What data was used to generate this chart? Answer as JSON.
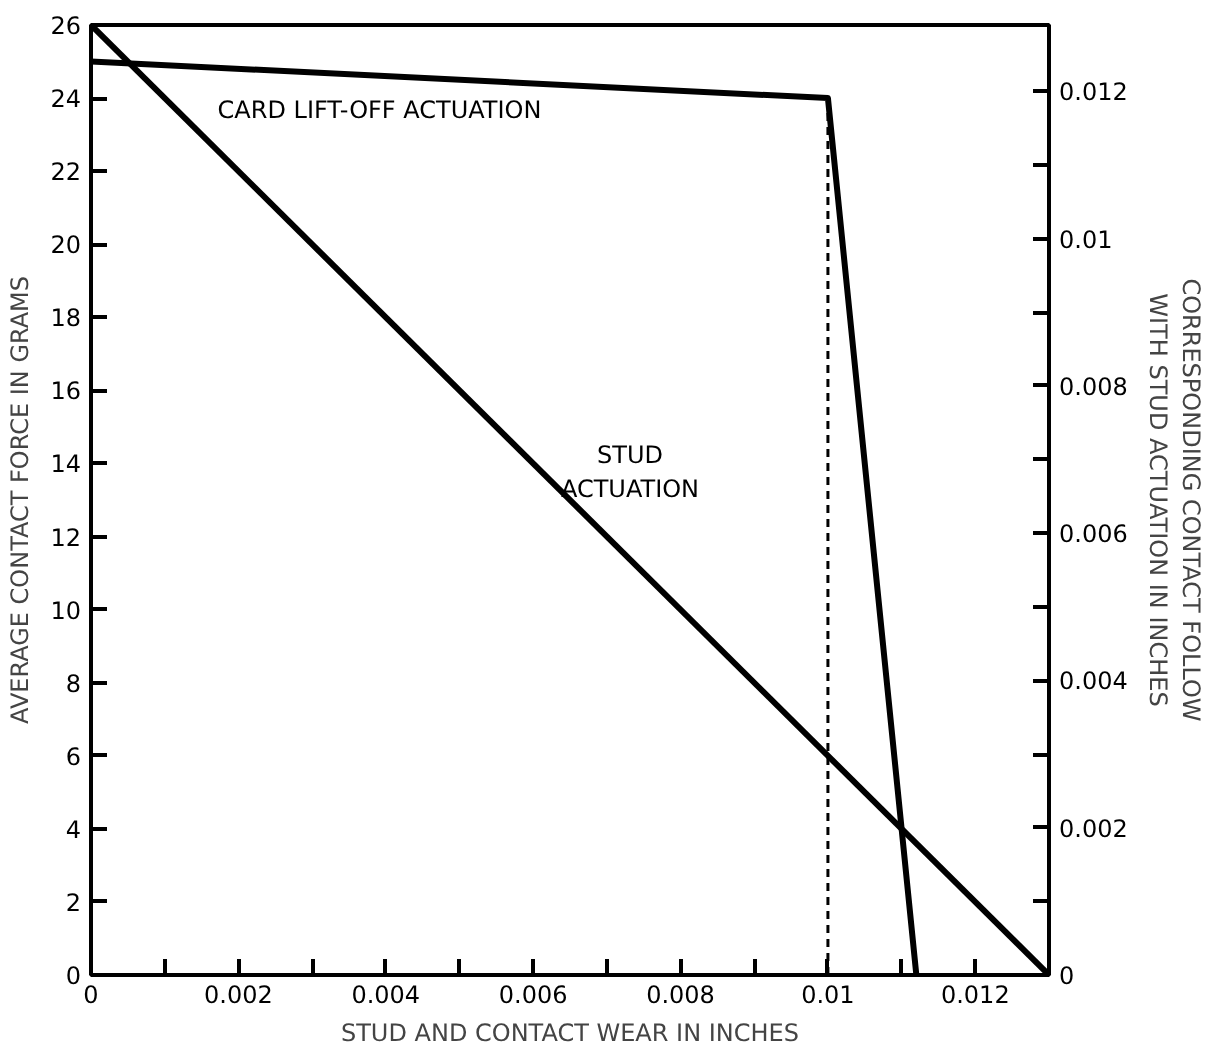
{
  "chart_data": {
    "type": "line",
    "xlabel": "STUD AND CONTACT WEAR IN INCHES",
    "ylabel": "AVERAGE CONTACT FORCE IN GRAMS",
    "y2label": "CORRESPONDING CONTACT FOLLOW\nWITH STUD ACTUATION IN INCHES",
    "xlim": [
      0,
      0.013
    ],
    "ylim": [
      0,
      26
    ],
    "y2lim": [
      0,
      0.0129
    ],
    "xticks": [
      {
        "value": 0,
        "label": "0"
      },
      {
        "value": 0.001,
        "label": null
      },
      0.002,
      {
        "value": 0.003,
        "label": null
      },
      0.004,
      {
        "value": 0.005,
        "label": null
      },
      0.006,
      {
        "value": 0.007,
        "label": null
      },
      0.008,
      {
        "value": 0.009,
        "label": null
      },
      0.01,
      {
        "value": 0.011,
        "label": null
      },
      0.012
    ],
    "yticks": [
      0,
      2,
      4,
      6,
      8,
      10,
      12,
      14,
      16,
      18,
      20,
      22,
      24,
      26
    ],
    "y2ticks": [
      {
        "value": 0,
        "label": "0"
      },
      {
        "value": 0.001,
        "label": null
      },
      0.002,
      {
        "value": 0.003,
        "label": null
      },
      0.004,
      {
        "value": 0.005,
        "label": null
      },
      0.006,
      {
        "value": 0.007,
        "label": null
      },
      0.008,
      {
        "value": 0.009,
        "label": null
      },
      0.01,
      {
        "value": 0.011,
        "label": null
      },
      0.012
    ],
    "grid": false,
    "marker": "none",
    "ref_lines": [
      {
        "axis": "x",
        "value": 0.01,
        "color": "#000000",
        "line_style": "dashed"
      }
    ],
    "series": [
      {
        "name": "CARD LIFT-OFF ACTUATION",
        "color": "#000000",
        "x": [
          0,
          0.01,
          0.0112
        ],
        "values": [
          25,
          24,
          0
        ]
      },
      {
        "name": "STUD\nACTUATION",
        "color": "#000000",
        "x": [
          0,
          0.013
        ],
        "values": [
          26,
          0
        ]
      }
    ]
  }
}
